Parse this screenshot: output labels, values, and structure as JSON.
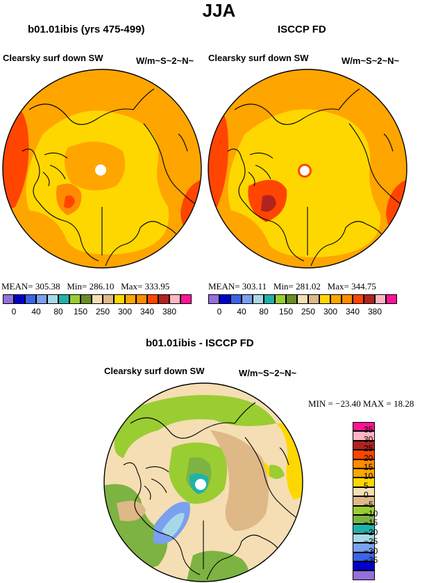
{
  "title": "JJA",
  "panels": [
    {
      "id": "model",
      "title": "b01.01ibis (yrs 475-499)",
      "variable": "Clearsky surf down SW",
      "units": "W/m~S~2~N~",
      "stats": {
        "mean_label": "MEAN=",
        "mean": "305.38",
        "min_label": "Min=",
        "min": "286.10",
        "max_label": "Max=",
        "max": "333.95"
      }
    },
    {
      "id": "obs",
      "title": "ISCCP FD",
      "variable": "Clearsky surf down SW",
      "units": "W/m~S~2~N~",
      "stats": {
        "mean_label": "MEAN=",
        "mean": "303.11",
        "min_label": "Min=",
        "min": "281.02",
        "max_label": "Max=",
        "max": "344.75"
      }
    }
  ],
  "diff_panel": {
    "title": "b01.01ibis - ISCCP FD",
    "variable": "Clearsky surf down SW",
    "units": "W/m~S~2~N~",
    "stats_text": "MIN = −23.40  MAX =  18.28"
  },
  "colorbar_abs": {
    "colors": [
      "#9370db",
      "#0000cd",
      "#3c64e6",
      "#7aa0ee",
      "#a8d8e8",
      "#20b2aa",
      "#9acd32",
      "#6b8e23",
      "#f5deb3",
      "#deb887",
      "#ffd700",
      "#ffa500",
      "#ff8c00",
      "#ff4500",
      "#b22222",
      "#ffb6c1",
      "#ff1493"
    ],
    "tick_labels": [
      "0",
      "40",
      "80",
      "150",
      "250",
      "300",
      "340",
      "380"
    ],
    "tick_positions": [
      1,
      3,
      5,
      7,
      9,
      11,
      13,
      15
    ]
  },
  "colorbar_diff": {
    "colors": [
      "#ff1493",
      "#ffb6c1",
      "#b22222",
      "#ff4500",
      "#ff8c00",
      "#ffa500",
      "#ffd700",
      "#f5deb3",
      "#deb887",
      "#9acd32",
      "#7cb342",
      "#20b2aa",
      "#a8d8e8",
      "#7aa0ee",
      "#3c64e6",
      "#0000cd",
      "#9370db"
    ],
    "tick_labels": [
      "35",
      "30",
      "25",
      "20",
      "15",
      "10",
      "5",
      "0",
      "−5",
      "−10",
      "−15",
      "−20",
      "−25",
      "−30",
      "−35"
    ]
  }
}
